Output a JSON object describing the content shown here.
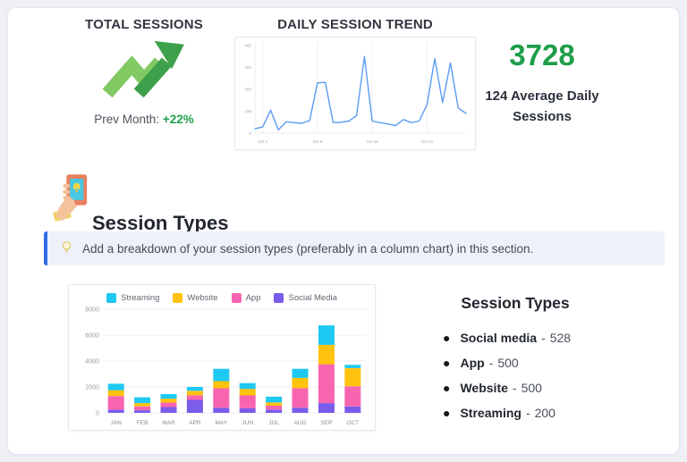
{
  "page": {
    "background": "#eef0f6",
    "card_background": "#ffffff"
  },
  "colors": {
    "accent_green": "#22a24c",
    "big_number_green": "#1f9e4a",
    "arrow_light_green": "#82ca64",
    "arrow_dark_green": "#3da14b",
    "line_blue": "#5b9cf3",
    "streaming_cyan": "#1ec9f2",
    "website_yellow": "#ffc20e",
    "app_pink": "#f964b0",
    "social_media_purple": "#7a5cea",
    "callout_border_blue": "#2e6bea",
    "callout_background": "#eef1f9"
  },
  "total_sessions": {
    "title": "TOTAL SESSIONS",
    "prev_month_label": "Prev Month:",
    "prev_month_value": "+22%"
  },
  "summary": {
    "total": "3728",
    "subtitle": "124 Average Daily Sessions"
  },
  "section": {
    "heading": "Session Types",
    "callout_text": "Add a breakdown of your session types (preferably in a column chart) in this section."
  },
  "session_types_list": {
    "heading": "Session Types",
    "sep": "-",
    "items": [
      {
        "label": "Social media",
        "value": "528"
      },
      {
        "label": "App",
        "value": "500"
      },
      {
        "label": "Website",
        "value": "500"
      },
      {
        "label": "Streaming",
        "value": "200"
      }
    ]
  },
  "chart_data": [
    {
      "type": "line",
      "title": "DAILY SESSION TREND",
      "x_unit": "day of October",
      "x": [
        1,
        2,
        3,
        4,
        5,
        6,
        7,
        8,
        9,
        10,
        11,
        12,
        13,
        14,
        15,
        16,
        17,
        18,
        19,
        20,
        21,
        22,
        23,
        24,
        25,
        26,
        27,
        28
      ],
      "values": [
        20,
        28,
        105,
        15,
        52,
        48,
        45,
        58,
        230,
        232,
        48,
        50,
        55,
        80,
        350,
        55,
        48,
        42,
        35,
        62,
        48,
        55,
        130,
        340,
        140,
        320,
        115,
        90
      ],
      "xticks": [
        {
          "day": 2,
          "label": "Oct 2"
        },
        {
          "day": 9,
          "label": "Oct 9"
        },
        {
          "day": 16,
          "label": "Oct 16"
        },
        {
          "day": 23,
          "label": "Oct 23"
        }
      ],
      "yticks": [
        0,
        100,
        200,
        300,
        400
      ],
      "ylim": [
        0,
        400
      ],
      "line_color": "#5b9cf3",
      "grid": "vertical-lines-at-xticks",
      "legend_position": "none"
    },
    {
      "type": "bar",
      "stacked": true,
      "categories": [
        "JAN",
        "FEB",
        "MAR",
        "APR",
        "MAY",
        "JUN",
        "JUL",
        "AUG",
        "SEP",
        "OCT"
      ],
      "series": [
        {
          "name": "Social Media",
          "color": "#7a5cea",
          "values": [
            250,
            200,
            450,
            1000,
            400,
            350,
            250,
            400,
            750,
            500
          ]
        },
        {
          "name": "App",
          "color": "#f964b0",
          "values": [
            1050,
            300,
            350,
            350,
            1500,
            1000,
            300,
            1500,
            3000,
            1550
          ]
        },
        {
          "name": "Website",
          "color": "#ffc20e",
          "values": [
            450,
            250,
            300,
            350,
            550,
            500,
            250,
            800,
            1500,
            1400
          ]
        },
        {
          "name": "Streaming",
          "color": "#1ec9f2",
          "values": [
            500,
            450,
            350,
            300,
            950,
            450,
            450,
            700,
            1500,
            250
          ]
        }
      ],
      "legend": [
        {
          "label": "Streaming",
          "color": "#1ec9f2"
        },
        {
          "label": "Website",
          "color": "#ffc20e"
        },
        {
          "label": "App",
          "color": "#f964b0"
        },
        {
          "label": "Social Media",
          "color": "#7a5cea"
        }
      ],
      "yticks": [
        0,
        2000,
        4000,
        6000,
        8000
      ],
      "ylim": [
        0,
        8000
      ],
      "grid": "horizontal",
      "legend_position": "top"
    }
  ]
}
